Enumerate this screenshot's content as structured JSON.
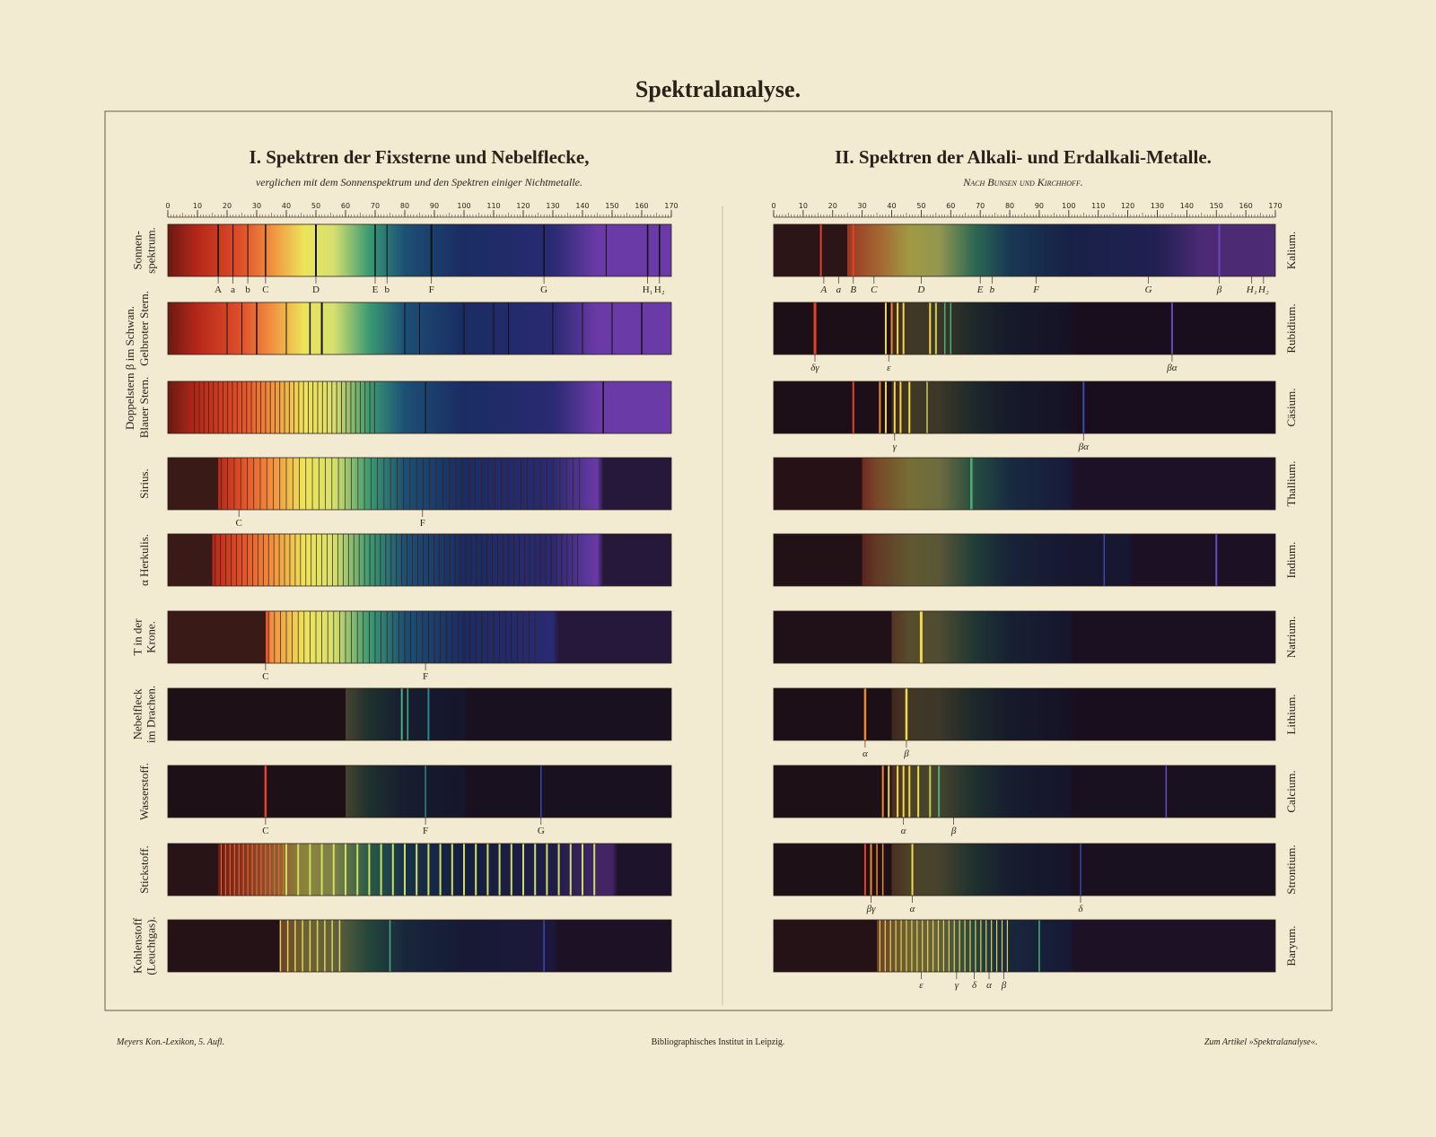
{
  "title": "Spektralanalyse.",
  "sections": [
    {
      "title": "I. Spektren der Fixsterne und Nebelflecke,",
      "subtitle": "verglichen mit dem Sonnenspektrum und den Spektren einiger Nichtmetalle.",
      "scale": [
        0,
        10,
        20,
        30,
        40,
        50,
        60,
        70,
        80,
        90,
        100,
        110,
        120,
        130,
        140,
        150,
        160,
        170
      ],
      "group_label": "Doppelstern β im Schwan.",
      "rows": [
        {
          "label": [
            "Sonnen-",
            "spektrum."
          ],
          "letters": [
            "A",
            "a",
            "b",
            "C",
            "D",
            "E",
            "b",
            "F",
            "G",
            "H₁",
            "H₂"
          ]
        },
        {
          "label": [
            "Gelbroter Stern."
          ],
          "letters": []
        },
        {
          "label": [
            "Blauer Stern."
          ],
          "letters": []
        },
        {
          "label": [
            "Sirius."
          ],
          "letters": [
            "C",
            "F"
          ]
        },
        {
          "label": [
            "α Herkulis."
          ],
          "letters": []
        },
        {
          "label": [
            "T in der",
            "Krone."
          ],
          "letters": [
            "C",
            "F"
          ]
        },
        {
          "label": [
            "Nebelfleck",
            "im Drachen."
          ],
          "letters": []
        },
        {
          "label": [
            "Wasserstoff."
          ],
          "letters": [
            "C",
            "F",
            "G"
          ]
        },
        {
          "label": [
            "Stickstoff."
          ],
          "letters": []
        },
        {
          "label": [
            "Kohlenstoff",
            "(Leuchtgas)."
          ],
          "letters": []
        }
      ]
    },
    {
      "title": "II. Spektren der Alkali- und Erdalkali-Metalle.",
      "subtitle": "Nach Bunsen und Kirchhoff.",
      "scale": [
        0,
        10,
        20,
        30,
        40,
        50,
        60,
        70,
        80,
        90,
        100,
        110,
        120,
        130,
        140,
        150,
        160,
        170
      ],
      "rows": [
        {
          "label": [
            "Kalium."
          ],
          "letters": [
            "A",
            "a",
            "B",
            "C",
            "D",
            "E",
            "b",
            "F",
            "G",
            "β",
            "H₁",
            "H₂"
          ]
        },
        {
          "label": [
            "Rubidium."
          ],
          "letters": [
            "δγ",
            "ε",
            "βα"
          ]
        },
        {
          "label": [
            "Cäsium."
          ],
          "letters": [
            "γ",
            "βα"
          ]
        },
        {
          "label": [
            "Thallium."
          ],
          "letters": []
        },
        {
          "label": [
            "Indium."
          ],
          "letters": []
        },
        {
          "label": [
            "Natrium."
          ],
          "letters": []
        },
        {
          "label": [
            "Lithium."
          ],
          "letters": [
            "α",
            "β"
          ]
        },
        {
          "label": [
            "Calcium."
          ],
          "letters": [
            "α",
            "β"
          ]
        },
        {
          "label": [
            "Strontium."
          ],
          "letters": [
            "βγ",
            "α",
            "δ"
          ]
        },
        {
          "label": [
            "Baryum."
          ],
          "letters": [
            "ε",
            "γ",
            "δ",
            "α",
            "β"
          ]
        }
      ]
    }
  ],
  "footer": {
    "left": "Meyers Kon.-Lexikon, 5. Aufl.",
    "center": "Bibliographisches Institut in Leipzig.",
    "right": "Zum Artikel »Spektralanalyse«."
  }
}
